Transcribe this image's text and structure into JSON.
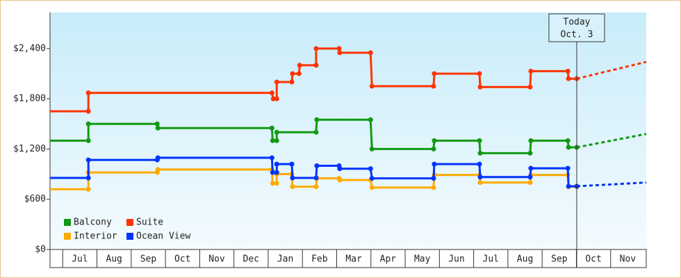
{
  "chart_data": {
    "type": "line",
    "step_points": true,
    "xlim": [
      -0.37,
      17.04
    ],
    "ylim": [
      0,
      2830
    ],
    "yticks": [
      {
        "value": 0,
        "label": "$0"
      },
      {
        "value": 600,
        "label": "$600"
      },
      {
        "value": 1200,
        "label": "$1,200"
      },
      {
        "value": 1800,
        "label": "$1,800"
      },
      {
        "value": 2400,
        "label": "$2,400"
      }
    ],
    "xticks": [
      {
        "value": 0.5,
        "label": "Jul"
      },
      {
        "value": 1.5,
        "label": "Aug"
      },
      {
        "value": 2.5,
        "label": "Sep"
      },
      {
        "value": 3.5,
        "label": "Oct"
      },
      {
        "value": 4.5,
        "label": "Nov"
      },
      {
        "value": 5.5,
        "label": "Dec"
      },
      {
        "value": 6.5,
        "label": "Jan"
      },
      {
        "value": 7.5,
        "label": "Feb"
      },
      {
        "value": 8.5,
        "label": "Mar"
      },
      {
        "value": 9.5,
        "label": "Apr"
      },
      {
        "value": 10.5,
        "label": "May"
      },
      {
        "value": 11.5,
        "label": "Jun"
      },
      {
        "value": 12.5,
        "label": "Jul"
      },
      {
        "value": 13.5,
        "label": "Aug"
      },
      {
        "value": 14.5,
        "label": "Sep"
      },
      {
        "value": 15.5,
        "label": "Oct"
      },
      {
        "value": 16.5,
        "label": "Nov"
      }
    ],
    "today": {
      "x": 15.01,
      "label": [
        "Today",
        "Oct. 3"
      ]
    },
    "legend": "lower-left",
    "series": [
      {
        "name": "Balcony",
        "color": "#119911",
        "x": [
          -0.37,
          0.75,
          0.75,
          2.76,
          2.78,
          6.11,
          6.13,
          6.25,
          6.25,
          7.4,
          7.42,
          8.99,
          9.03,
          10.83,
          10.85,
          12.17,
          12.19,
          13.65,
          13.67,
          14.75,
          14.77,
          15.01
        ],
        "values": [
          1300,
          1300,
          1500,
          1500,
          1450,
          1450,
          1300,
          1300,
          1400,
          1400,
          1550,
          1550,
          1200,
          1200,
          1300,
          1300,
          1150,
          1150,
          1300,
          1300,
          1220,
          1220
        ],
        "projection": {
          "x": [
            15.01,
            17.04
          ],
          "values": [
            1220,
            1380
          ]
        }
      },
      {
        "name": "Suite",
        "color": "#ff3300",
        "x": [
          -0.37,
          0.75,
          0.75,
          6.11,
          6.15,
          6.25,
          6.25,
          6.69,
          6.71,
          6.9,
          6.92,
          7.4,
          7.4,
          8.07,
          8.09,
          8.99,
          9.03,
          10.83,
          10.85,
          12.17,
          12.19,
          13.65,
          13.67,
          14.75,
          14.77,
          15.01
        ],
        "values": [
          1650,
          1650,
          1870,
          1870,
          1800,
          1800,
          2000,
          2000,
          2100,
          2100,
          2200,
          2200,
          2400,
          2400,
          2350,
          2350,
          1950,
          1950,
          2100,
          2100,
          1940,
          1940,
          2130,
          2130,
          2040,
          2040
        ],
        "projection": {
          "x": [
            15.01,
            17.04
          ],
          "values": [
            2040,
            2240
          ]
        }
      },
      {
        "name": "Interior",
        "color": "#ffaa00",
        "x": [
          -0.37,
          0.75,
          0.75,
          2.76,
          2.78,
          6.11,
          6.13,
          6.25,
          6.25,
          6.69,
          6.71,
          7.4,
          7.42,
          8.07,
          8.09,
          8.99,
          9.03,
          10.83,
          10.85,
          12.17,
          12.19,
          13.65,
          13.67,
          14.75,
          14.77,
          15.01
        ],
        "values": [
          720,
          720,
          920,
          920,
          955,
          955,
          790,
          790,
          900,
          900,
          750,
          750,
          850,
          850,
          830,
          830,
          740,
          740,
          890,
          890,
          800,
          800,
          890,
          890,
          750,
          750
        ]
      },
      {
        "name": "Ocean View",
        "color": "#0033ff",
        "x": [
          -0.37,
          0.75,
          0.75,
          2.76,
          2.78,
          6.11,
          6.13,
          6.25,
          6.25,
          6.69,
          6.71,
          7.4,
          7.42,
          8.07,
          8.09,
          8.99,
          9.03,
          10.83,
          10.85,
          12.17,
          12.19,
          13.65,
          13.67,
          14.75,
          14.77,
          15.01
        ],
        "values": [
          855,
          855,
          1070,
          1070,
          1095,
          1095,
          920,
          920,
          1020,
          1020,
          855,
          855,
          1000,
          1000,
          965,
          965,
          850,
          850,
          1020,
          1020,
          865,
          865,
          970,
          970,
          755,
          755
        ],
        "projection": {
          "x": [
            15.01,
            17.04
          ],
          "values": [
            755,
            800
          ]
        }
      }
    ]
  }
}
